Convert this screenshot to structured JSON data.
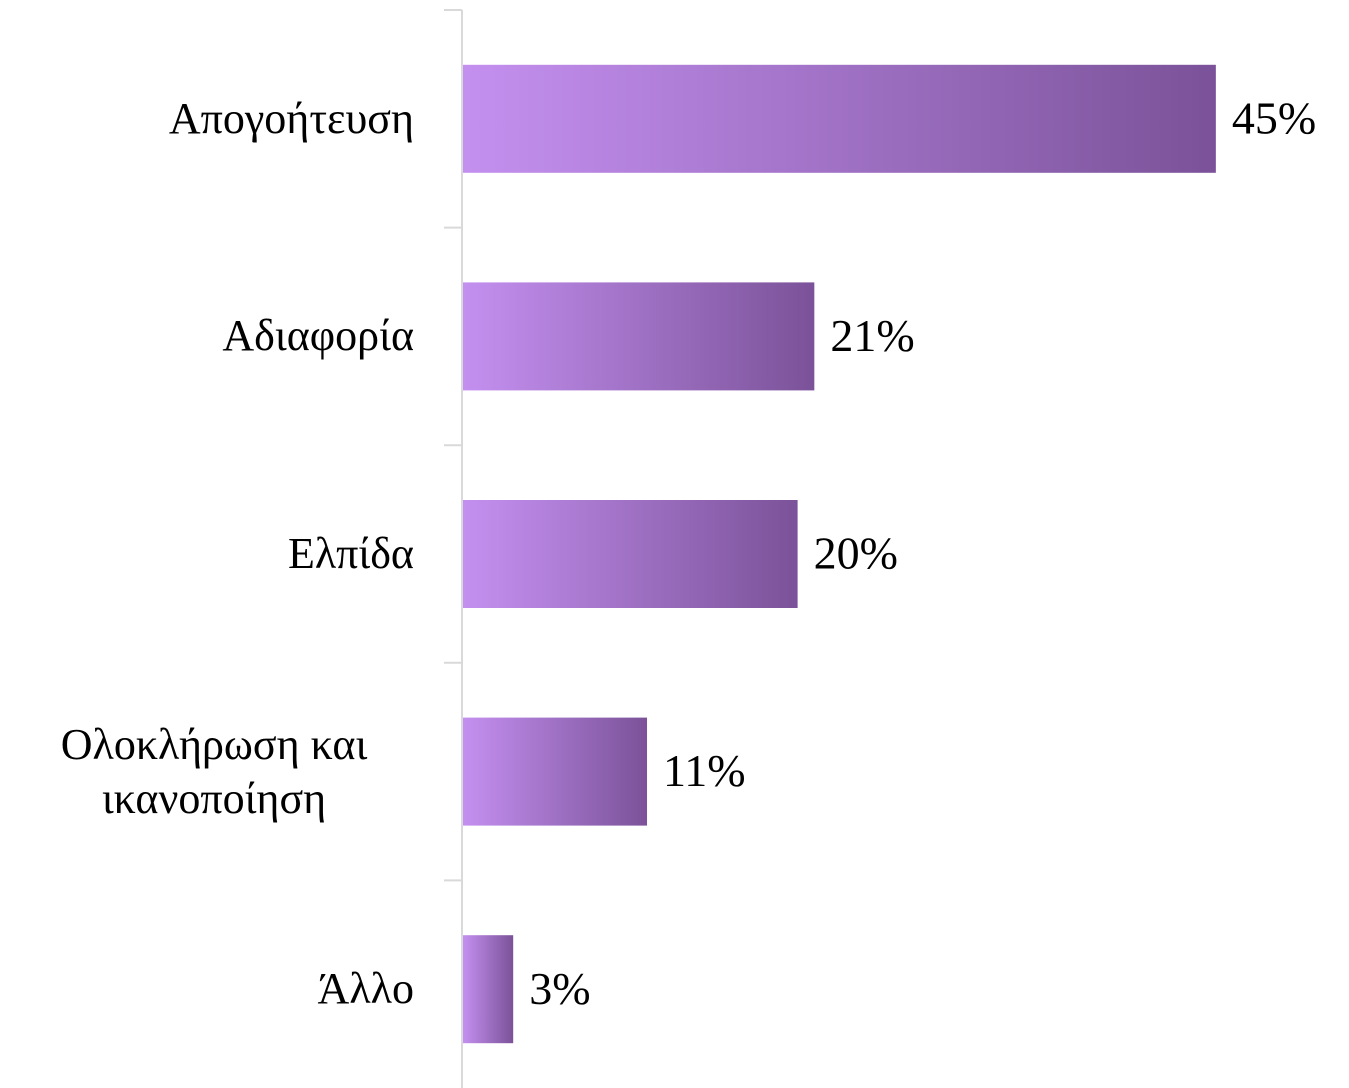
{
  "chart_data": {
    "type": "bar",
    "orientation": "horizontal",
    "categories": [
      "Απογοήτευση",
      "Αδιαφορία",
      "Ελπίδα",
      "Ολοκλήρωση και ικανοποίηση",
      "Άλλο"
    ],
    "values": [
      45,
      21,
      20,
      11,
      3
    ],
    "value_labels": [
      "45%",
      "21%",
      "20%",
      "11%",
      "3%"
    ],
    "color": [
      "#c490f0",
      "#7b5299"
    ]
  }
}
